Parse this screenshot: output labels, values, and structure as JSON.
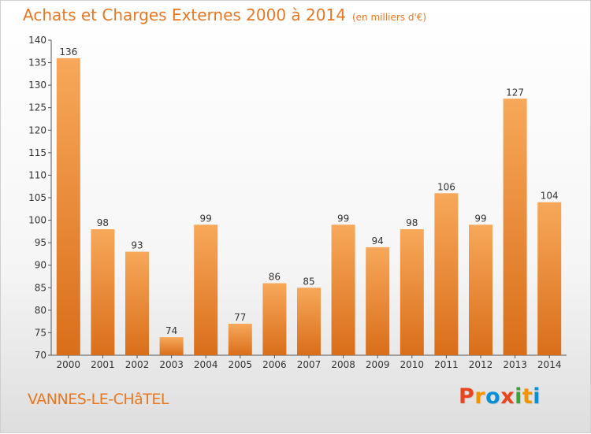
{
  "header": {
    "title": "Achats et Charges Externes 2000 à 2014",
    "subtitle": "(en milliers d'€)"
  },
  "footer": {
    "place": "VANNES-LE-CHâTEL",
    "logo_letters": [
      "P",
      "r",
      "o",
      "x",
      "i",
      "t",
      "i"
    ],
    "logo_colors": [
      "#e8441e",
      "#f29400",
      "#0a8fd6",
      "#e8441e",
      "#3aa535",
      "#f29400",
      "#0a8fd6"
    ]
  },
  "colors": {
    "accent": "#e87722",
    "bar_top": "#f7a85a",
    "bar_bottom": "#d96e1a"
  },
  "chart_data": {
    "type": "bar",
    "title": "Achats et Charges Externes 2000 à 2014",
    "subtitle": "(en milliers d'€)",
    "categories": [
      "2000",
      "2001",
      "2002",
      "2003",
      "2004",
      "2005",
      "2006",
      "2007",
      "2008",
      "2009",
      "2010",
      "2011",
      "2012",
      "2013",
      "2014"
    ],
    "values": [
      136,
      98,
      93,
      74,
      99,
      77,
      86,
      85,
      99,
      94,
      98,
      106,
      99,
      127,
      104
    ],
    "ylim": [
      70,
      140
    ],
    "yticks": [
      70,
      75,
      80,
      85,
      90,
      95,
      100,
      105,
      110,
      115,
      120,
      125,
      130,
      135,
      140
    ],
    "grid": false
  }
}
